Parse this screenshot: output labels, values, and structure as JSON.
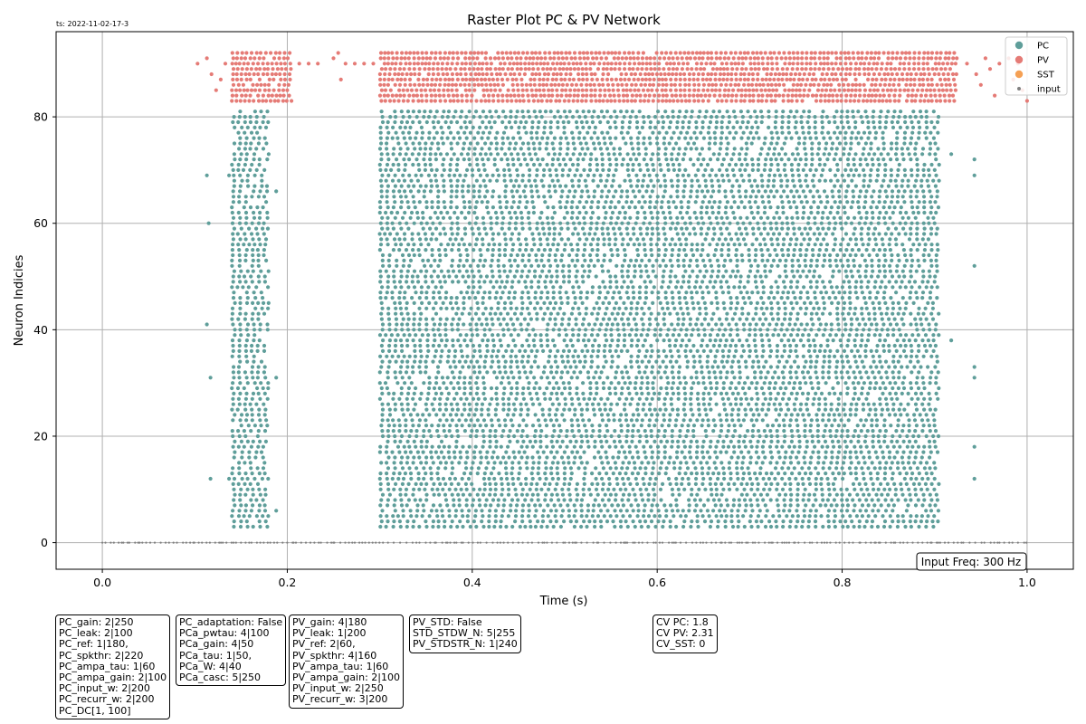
{
  "timestamp": "ts: 2022-11-02-17-3",
  "chart_data": {
    "type": "scatter",
    "title": "Raster Plot PC & PV Network",
    "xlabel": "Time (s)",
    "ylabel": "Neuron Indicies",
    "xlim": [
      -0.05,
      1.05
    ],
    "ylim": [
      -5,
      96
    ],
    "xticks": [
      0.0,
      0.2,
      0.4,
      0.6,
      0.8,
      1.0
    ],
    "xtick_labels": [
      "0.0",
      "0.2",
      "0.4",
      "0.6",
      "0.8",
      "1.0"
    ],
    "yticks": [
      0,
      20,
      40,
      60,
      80
    ],
    "ytick_labels": [
      "0",
      "20",
      "40",
      "60",
      "80"
    ],
    "grid": true,
    "legend_position": "top-right",
    "legend": [
      "PC",
      "PV",
      "SST",
      "input"
    ],
    "series": [
      {
        "name": "PC",
        "color": "#5f9e9a",
        "neuron_range": [
          3,
          81
        ],
        "bursts": [
          {
            "t_start": 0.14,
            "t_end": 0.18
          },
          {
            "t_start": 0.3,
            "t_end": 0.905
          }
        ],
        "sparse_points": [
          [
            0.113,
            69
          ],
          [
            0.115,
            60
          ],
          [
            0.113,
            41
          ],
          [
            0.117,
            31
          ],
          [
            0.117,
            12
          ],
          [
            0.137,
            69
          ],
          [
            0.137,
            12
          ],
          [
            0.188,
            66
          ],
          [
            0.188,
            6
          ],
          [
            0.188,
            31
          ],
          [
            0.918,
            73
          ],
          [
            0.918,
            38
          ],
          [
            0.943,
            72
          ],
          [
            0.943,
            69
          ],
          [
            0.943,
            52
          ],
          [
            0.943,
            33
          ],
          [
            0.943,
            31
          ],
          [
            0.943,
            18
          ],
          [
            0.943,
            12
          ]
        ]
      },
      {
        "name": "PV",
        "color": "#e57b76",
        "neuron_range": [
          83,
          92
        ],
        "bursts": [
          {
            "t_start": 0.14,
            "t_end": 0.205
          },
          {
            "t_start": 0.3,
            "t_end": 0.925
          }
        ],
        "sparse_points": [
          [
            0.103,
            90
          ],
          [
            0.113,
            91
          ],
          [
            0.118,
            88
          ],
          [
            0.123,
            85
          ],
          [
            0.128,
            87
          ],
          [
            0.133,
            90
          ],
          [
            0.213,
            90
          ],
          [
            0.223,
            90
          ],
          [
            0.233,
            90
          ],
          [
            0.25,
            91
          ],
          [
            0.255,
            92
          ],
          [
            0.258,
            87
          ],
          [
            0.263,
            90
          ],
          [
            0.273,
            90
          ],
          [
            0.283,
            90
          ],
          [
            0.293,
            90
          ],
          [
            0.935,
            90
          ],
          [
            0.945,
            88
          ],
          [
            0.95,
            86
          ],
          [
            0.955,
            91
          ],
          [
            0.96,
            89
          ],
          [
            0.965,
            84
          ],
          [
            0.97,
            90
          ],
          [
            0.98,
            91
          ],
          [
            0.985,
            87
          ],
          [
            0.99,
            90
          ],
          [
            0.995,
            85
          ],
          [
            1.0,
            83
          ]
        ]
      },
      {
        "name": "SST",
        "color": "#f5a054",
        "neuron_range": null
      },
      {
        "name": "input",
        "color": "#808080",
        "neuron": 0,
        "t_range": [
          0.0,
          1.0
        ]
      }
    ],
    "annotation": "Input Freq: 300 Hz"
  },
  "param_boxes": [
    {
      "lines": [
        "PC_gain: 2|250",
        "PC_leak: 2|100",
        "PC_ref: 1|180,",
        "PC_spkthr: 2|220",
        "PC_ampa_tau: 1|60",
        "PC_ampa_gain: 2|100",
        "PC_input_w: 2|200",
        "PC_recurr_w: 2|200",
        "PC_DC[1, 100]"
      ]
    },
    {
      "lines": [
        "PC_adaptation: False",
        "PCa_pwtau: 4|100",
        "PCa_gain: 4|50",
        "PCa_tau: 1|50,",
        "PCa_W: 4|40",
        "PCa_casc: 5|250"
      ]
    },
    {
      "lines": [
        "PV_gain: 4|180",
        "PV_leak: 1|200",
        "PV_ref: 2|60,",
        "PV_spkthr: 4|160",
        "PV_ampa_tau: 1|60",
        "PV_ampa_gain: 2|100",
        "PV_input_w: 2|250",
        "PV_recurr_w: 3|200"
      ]
    },
    {
      "lines": [
        "PV_STD: False",
        "STD_STDW_N: 5|255",
        "PV_STDSTR_N: 1|240"
      ]
    },
    {
      "lines": [
        "CV PC: 1.8",
        "CV PV: 2.31",
        "CV_SST: 0"
      ]
    }
  ]
}
